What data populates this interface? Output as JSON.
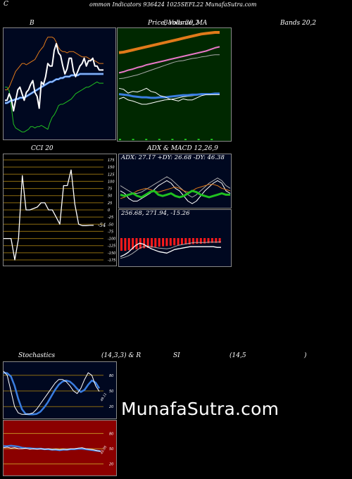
{
  "header": {
    "left": "C",
    "text": "ommon  Indicators 936424  1025SEFL22  MunafaSutra.com"
  },
  "titles": {
    "bb": "B",
    "price": "Price,  Volume,  MA",
    "price_overlay": "Bands 20,2",
    "cci": "CCI 20",
    "adx": "ADX  & MACD 12,26,9",
    "stoch1": "Stochastics",
    "stoch2": "(14,3,3) & R",
    "stoch3": "SI",
    "stoch4": "(14,5",
    "stoch5": ")"
  },
  "watermark": "MunafaSutra.com",
  "colors": {
    "panel_bg": "#000820",
    "volume_bg": "#002800",
    "rsi_bg": "#8b0000",
    "grid_gold": "#8b6b10",
    "orange": "#e07a1a",
    "green": "#20c020",
    "blue": "#3a7de0",
    "white": "#ffffff",
    "pink": "#e878c8",
    "red": "#ff1a1a",
    "gray": "#aaaaaa"
  },
  "chart_data": [
    {
      "name": "bollinger",
      "type": "line",
      "series": [
        {
          "color": "#20c020",
          "values": [
            100,
            100,
            97,
            85,
            72,
            69,
            68,
            67,
            66,
            66,
            67,
            68,
            70,
            70,
            69,
            70,
            70,
            71,
            70,
            69,
            68,
            73,
            77,
            79,
            82,
            86,
            87,
            87,
            88,
            89,
            90,
            91,
            93,
            95,
            96,
            97,
            98,
            99,
            100,
            100,
            101,
            102,
            103,
            104,
            103,
            103,
            103
          ]
        },
        {
          "color": "#3a7de0",
          "values": [
            88,
            88,
            89,
            90,
            90,
            91,
            91,
            92,
            92,
            92,
            93,
            94,
            95,
            96,
            97,
            98,
            99,
            100,
            101,
            102,
            103,
            104,
            104,
            105,
            106,
            106,
            107,
            107,
            108,
            108,
            108,
            109,
            109,
            109,
            109,
            110,
            110,
            110,
            110,
            110,
            110,
            110,
            110,
            110,
            110,
            110,
            110
          ]
        },
        {
          "color": "#e07a1a",
          "values": [
            98,
            98,
            100,
            104,
            108,
            112,
            114,
            116,
            118,
            118,
            117,
            118,
            119,
            120,
            121,
            124,
            127,
            129,
            131,
            135,
            138,
            138,
            138,
            137,
            134,
            130,
            128,
            127,
            127,
            126,
            127,
            127,
            127,
            126,
            125,
            124,
            123,
            123,
            123,
            122,
            121,
            121,
            120,
            119,
            118,
            118,
            118
          ]
        },
        {
          "color": "#ffffff",
          "values": [
            90,
            90,
            95,
            91,
            82,
            90,
            98,
            100,
            95,
            90,
            96,
            98,
            102,
            105,
            96,
            93,
            84,
            104,
            102,
            108,
            118,
            116,
            116,
            128,
            133,
            126,
            124,
            116,
            110,
            114,
            122,
            122,
            112,
            108,
            112,
            116,
            118,
            122,
            116,
            120,
            120,
            122,
            116,
            116,
            113,
            113,
            113
          ]
        }
      ]
    },
    {
      "name": "price_ma",
      "type": "line",
      "series": [
        {
          "color": "#e07a1a",
          "values": [
            79,
            80,
            82,
            84,
            86,
            88,
            90,
            92,
            94,
            96,
            98,
            100,
            102,
            104,
            106,
            108,
            110,
            112,
            114,
            115,
            116,
            117,
            117
          ]
        },
        {
          "color": "#e878c8",
          "values": [
            41,
            43,
            46,
            48,
            51,
            53,
            56,
            58,
            60,
            62,
            64,
            66,
            68,
            70,
            72,
            74,
            76,
            78,
            80,
            82,
            85,
            88,
            90
          ]
        },
        {
          "color": "#aaaaaa",
          "values": [
            30,
            31,
            33,
            35,
            37,
            40,
            43,
            46,
            49,
            52,
            55,
            58,
            61,
            63,
            64,
            66,
            68,
            69,
            71,
            72,
            74,
            75,
            75
          ]
        },
        {
          "color": "#ffffff",
          "values": [
            -8,
            -5,
            -10,
            -12,
            -15,
            -18,
            -18,
            -16,
            -14,
            -12,
            -10,
            -9,
            -8,
            -6,
            -4,
            -3,
            -2,
            -1,
            0,
            0,
            1,
            1,
            1
          ]
        },
        {
          "color": "#3a7de0",
          "values": [
            1,
            0,
            -1,
            -3,
            -4,
            -5,
            -5,
            -6,
            -6,
            -5,
            -5,
            -4,
            -3,
            -2,
            -1,
            -1,
            0,
            0,
            1,
            1,
            1,
            2,
            2
          ]
        },
        {
          "color": "#ffffff",
          "values": [
            12,
            10,
            3,
            6,
            5,
            8,
            12,
            6,
            4,
            -2,
            -4,
            -8,
            -10,
            -12,
            -8,
            -10,
            -10,
            -6,
            -2,
            0,
            0,
            0,
            0
          ]
        }
      ]
    },
    {
      "name": "cci",
      "type": "line",
      "ylim": [
        -175,
        175
      ],
      "ticks": [
        175,
        150,
        125,
        100,
        75,
        50,
        25,
        0,
        -25,
        -50,
        -75,
        -100,
        -125,
        -150,
        -175
      ],
      "last_label": "-54",
      "values": [
        -100,
        -100,
        -100,
        -175,
        -100,
        120,
        0,
        0,
        5,
        10,
        25,
        25,
        0,
        0,
        -25,
        -50,
        85,
        85,
        140,
        20,
        -50,
        -55,
        -55,
        -54,
        -54
      ]
    },
    {
      "name": "adx",
      "type": "line",
      "label": "ADX: 27.17  +DY: 26.68  -DY: 46.38",
      "series": [
        {
          "color": "#20c020",
          "values": [
            27,
            26,
            27,
            28,
            26,
            25,
            27,
            29,
            30,
            27,
            26,
            27,
            28,
            26,
            25,
            26,
            28,
            30,
            29,
            27,
            26,
            25,
            26,
            27,
            28,
            27,
            27
          ]
        },
        {
          "color": "#e07a1a",
          "values": [
            24,
            25,
            27,
            28,
            30,
            31,
            32,
            31,
            30,
            29,
            30,
            31,
            32,
            33,
            32,
            30,
            29,
            30,
            32,
            33,
            34,
            35,
            35,
            34,
            32,
            31,
            30
          ]
        },
        {
          "color": "#ffffff",
          "values": [
            30,
            28,
            24,
            22,
            22,
            24,
            26,
            28,
            31,
            34,
            36,
            38,
            36,
            32,
            30,
            26,
            22,
            20,
            22,
            26,
            30,
            33,
            36,
            38,
            36,
            30,
            28
          ]
        },
        {
          "color": "#aaaaaa",
          "values": [
            34,
            32,
            30,
            28,
            28,
            29,
            31,
            33,
            35,
            37,
            39,
            41,
            39,
            36,
            33,
            30,
            27,
            25,
            27,
            30,
            33,
            36,
            38,
            40,
            38,
            34,
            32
          ]
        }
      ]
    },
    {
      "name": "macd",
      "type": "bar",
      "label": "256.68,  271.94,  -15.26",
      "histogram": [
        -40,
        -40,
        -38,
        -36,
        -35,
        -34,
        -32,
        -31,
        -30,
        -28,
        -27,
        -26,
        -25,
        -24,
        -23,
        -22,
        -21,
        -20,
        -20,
        -19,
        -18,
        -18,
        -17,
        -16,
        -15,
        -15,
        -15
      ],
      "series": [
        {
          "color": "#ffffff",
          "values": [
            230,
            235,
            242,
            252,
            262,
            268,
            265,
            258,
            252,
            248,
            244,
            242,
            240,
            245,
            250,
            252,
            254,
            256,
            258,
            258,
            258,
            258,
            258,
            258,
            258,
            256,
            256
          ]
        },
        {
          "color": "#aaaaaa",
          "values": [
            225,
            228,
            232,
            238,
            246,
            254,
            258,
            260,
            258,
            256,
            254,
            253,
            252,
            254,
            258,
            262,
            264,
            266,
            268,
            270,
            270,
            270,
            270,
            271,
            271,
            271,
            272
          ]
        }
      ]
    },
    {
      "name": "stochastics",
      "type": "line",
      "ylim": [
        0,
        100
      ],
      "ticks": [
        80,
        50,
        20
      ],
      "last_label": "49.11",
      "series": [
        {
          "color": "#3a7de0",
          "values": [
            85,
            84,
            78,
            60,
            35,
            15,
            6,
            5,
            5,
            6,
            10,
            18,
            28,
            40,
            52,
            62,
            68,
            70,
            68,
            62,
            54,
            48,
            52,
            62,
            70,
            66,
            55
          ]
        },
        {
          "color": "#ffffff",
          "values": [
            88,
            80,
            50,
            20,
            8,
            5,
            5,
            6,
            8,
            15,
            25,
            35,
            45,
            55,
            65,
            72,
            72,
            68,
            60,
            50,
            45,
            55,
            72,
            85,
            80,
            60,
            49
          ]
        }
      ]
    },
    {
      "name": "rsi",
      "type": "line",
      "ylim": [
        0,
        100
      ],
      "ticks": [
        80,
        50,
        20
      ],
      "last_label": "45.05",
      "series": [
        {
          "color": "#3a7de0",
          "values": [
            55,
            55,
            56,
            55,
            54,
            52,
            51,
            51,
            50,
            50,
            50,
            49,
            49,
            48,
            48,
            47,
            48,
            48,
            49,
            49,
            50,
            50,
            49,
            48,
            47,
            46,
            45
          ]
        },
        {
          "color": "#ffffff",
          "values": [
            52,
            53,
            51,
            52,
            50,
            50,
            51,
            49,
            50,
            49,
            50,
            49,
            50,
            48,
            49,
            48,
            49,
            48,
            50,
            50,
            51,
            52,
            50,
            49,
            48,
            46,
            45
          ]
        }
      ]
    }
  ]
}
